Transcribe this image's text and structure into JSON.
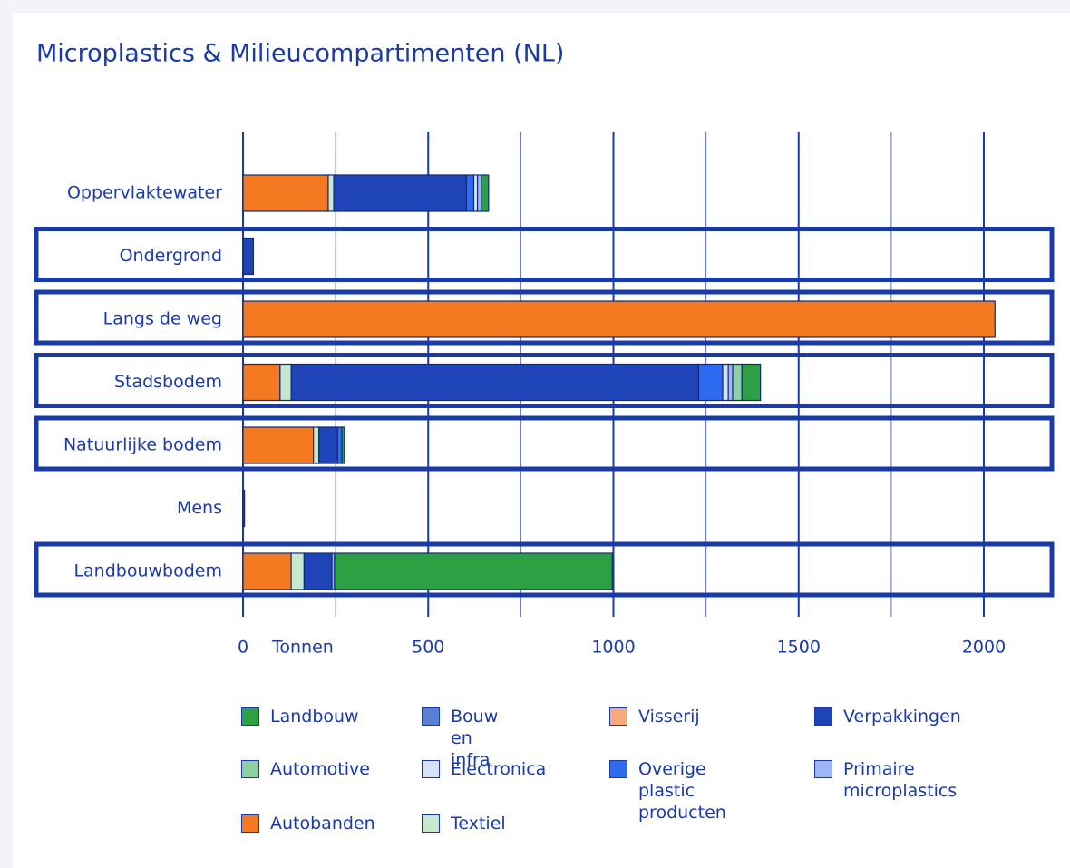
{
  "chart_data": {
    "type": "stacked_barh",
    "title": "Microplastics & Milieucompartimenten (NL)",
    "x_label": "Tonnen",
    "categories": [
      "Oppervlaktewater",
      "Ondergrond",
      "Langs de weg",
      "Stadsbodem",
      "Natuurlijke bodem",
      "Mens",
      "Landbouwbodem"
    ],
    "series": [
      {
        "name": "Autobanden",
        "color": "#f47920",
        "values": [
          230,
          0,
          2030,
          100,
          190,
          0,
          130
        ]
      },
      {
        "name": "Textiel",
        "color": "#c5e8cf",
        "values": [
          15,
          0,
          0,
          30,
          15,
          0,
          35
        ]
      },
      {
        "name": "Visserij",
        "color": "#f7a97a",
        "values": [
          0,
          0,
          0,
          0,
          0,
          0,
          0
        ]
      },
      {
        "name": "Verpakkingen",
        "color": "#1e44b8",
        "values": [
          358,
          28,
          0,
          1100,
          50,
          4,
          75
        ]
      },
      {
        "name": "Bouw en infra",
        "color": "#5b7fd4",
        "values": [
          0,
          0,
          0,
          0,
          0,
          0,
          0
        ]
      },
      {
        "name": "Overige plastic producten",
        "color": "#2f6bf0",
        "values": [
          20,
          0,
          0,
          65,
          12,
          0,
          0
        ]
      },
      {
        "name": "Electronica",
        "color": "#d6e2fa",
        "values": [
          10,
          0,
          0,
          15,
          0,
          0,
          0
        ]
      },
      {
        "name": "Primaire microplastics",
        "color": "#9fb6f5",
        "values": [
          10,
          0,
          0,
          12,
          0,
          0,
          7
        ]
      },
      {
        "name": "Automotive",
        "color": "#8fcfa4",
        "values": [
          0,
          0,
          0,
          25,
          0,
          0,
          0
        ]
      },
      {
        "name": "Landbouw",
        "color": "#2ea043",
        "values": [
          20,
          0,
          0,
          50,
          7,
          0,
          750
        ]
      }
    ],
    "xlim": [
      0,
      2150
    ],
    "xticks": [
      0,
      500,
      1000,
      1500,
      2000
    ],
    "grid": true
  }
}
